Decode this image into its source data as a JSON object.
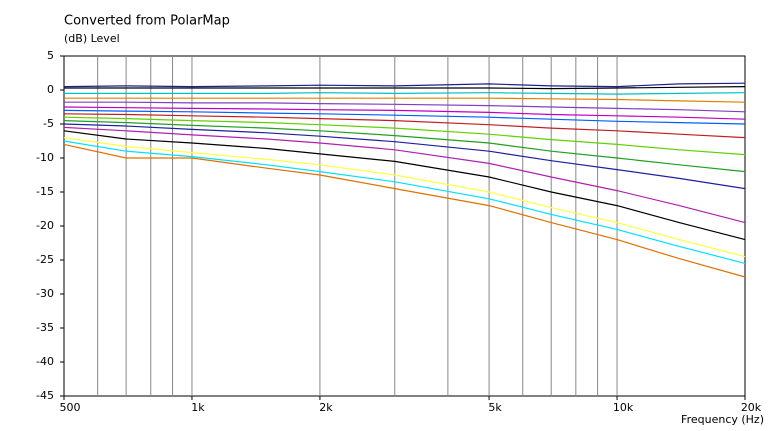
{
  "chart_data": {
    "type": "line",
    "title": "Converted from PolarMap",
    "ylabel": "(dB)  Level",
    "xlabel": "Frequency  (Hz)",
    "xscale": "log",
    "xlim": [
      500,
      20000
    ],
    "ylim": [
      -45,
      5
    ],
    "yticks": [
      5,
      0,
      -5,
      -10,
      -15,
      -20,
      -25,
      -30,
      -35,
      -40,
      -45
    ],
    "xticks": [
      500,
      {
        "value": 1000,
        "label": "1k"
      },
      {
        "value": 2000,
        "label": "2k"
      },
      {
        "value": 5000,
        "label": "5k"
      },
      {
        "value": 10000,
        "label": "10k"
      },
      {
        "value": 20000,
        "label": "20k"
      }
    ],
    "xgrid": [
      600,
      700,
      800,
      900,
      1000,
      2000,
      3000,
      4000,
      5000,
      6000,
      7000,
      8000,
      9000,
      10000
    ],
    "x": [
      500,
      700,
      1000,
      1500,
      2000,
      3000,
      5000,
      7000,
      10000,
      14000,
      20000
    ],
    "series": [
      {
        "color": "#1f1f8f",
        "values": [
          0.5,
          0.6,
          0.5,
          0.6,
          0.7,
          0.6,
          0.9,
          0.6,
          0.5,
          0.9,
          1.0
        ]
      },
      {
        "color": "#000000",
        "values": [
          0.3,
          0.3,
          0.3,
          0.3,
          0.3,
          0.3,
          0.3,
          0.2,
          0.3,
          0.4,
          0.5
        ]
      },
      {
        "color": "#00c0c0",
        "values": [
          -0.5,
          -0.5,
          -0.5,
          -0.5,
          -0.4,
          -0.5,
          -0.4,
          -0.5,
          -0.6,
          -0.5,
          -0.4
        ]
      },
      {
        "color": "#e08000",
        "values": [
          -1.2,
          -1.2,
          -1.2,
          -1.2,
          -1.2,
          -1.2,
          -1.2,
          -1.3,
          -1.4,
          -1.6,
          -1.8
        ]
      },
      {
        "color": "#8040c0",
        "values": [
          -1.8,
          -1.8,
          -1.9,
          -1.9,
          -2.0,
          -2.1,
          -2.3,
          -2.5,
          -2.7,
          -2.9,
          -3.2
        ]
      },
      {
        "color": "#c000c0",
        "values": [
          -2.5,
          -2.6,
          -2.7,
          -2.8,
          -2.9,
          -3.0,
          -3.3,
          -3.6,
          -3.8,
          -4.0,
          -4.3
        ]
      },
      {
        "color": "#0060ff",
        "values": [
          -3.0,
          -3.1,
          -3.2,
          -3.4,
          -3.5,
          -3.7,
          -4.0,
          -4.3,
          -4.6,
          -4.8,
          -5.0
        ]
      },
      {
        "color": "#c02020",
        "values": [
          -3.5,
          -3.6,
          -3.8,
          -4.0,
          -4.2,
          -4.5,
          -5.1,
          -5.6,
          -6.0,
          -6.5,
          -7.0
        ]
      },
      {
        "color": "#60d000",
        "values": [
          -4.0,
          -4.2,
          -4.5,
          -4.8,
          -5.1,
          -5.6,
          -6.5,
          -7.3,
          -8.0,
          -8.8,
          -9.5
        ]
      },
      {
        "color": "#20a020",
        "values": [
          -4.5,
          -4.8,
          -5.2,
          -5.6,
          -6.0,
          -6.7,
          -7.8,
          -9.0,
          -10.0,
          -11.0,
          -12.0
        ]
      },
      {
        "color": "#2020a0",
        "values": [
          -5.0,
          -5.3,
          -5.8,
          -6.3,
          -6.8,
          -7.6,
          -9.0,
          -10.4,
          -11.7,
          -13.0,
          -14.5
        ]
      },
      {
        "color": "#b020b0",
        "values": [
          -5.5,
          -6.0,
          -6.6,
          -7.2,
          -7.8,
          -8.8,
          -10.8,
          -12.8,
          -14.8,
          -17.0,
          -19.5
        ]
      },
      {
        "color": "#000000",
        "values": [
          -6.0,
          -7.2,
          -7.8,
          -8.6,
          -9.4,
          -10.5,
          -12.8,
          -15.0,
          -17.0,
          -19.5,
          -22.0
        ]
      },
      {
        "color": "#ffff40",
        "values": [
          -7.0,
          -8.3,
          -9.2,
          -10.2,
          -11.0,
          -12.5,
          -15.0,
          -17.3,
          -19.5,
          -22.0,
          -24.5
        ]
      },
      {
        "color": "#00e0ff",
        "values": [
          -7.5,
          -9.0,
          -9.8,
          -11.0,
          -12.0,
          -13.5,
          -16.0,
          -18.3,
          -20.5,
          -23.0,
          -25.5
        ]
      },
      {
        "color": "#e07000",
        "values": [
          -8.0,
          -10.0,
          -10.0,
          -11.5,
          -12.5,
          -14.5,
          -17.0,
          -19.5,
          -22.0,
          -24.8,
          -27.5
        ]
      }
    ]
  }
}
